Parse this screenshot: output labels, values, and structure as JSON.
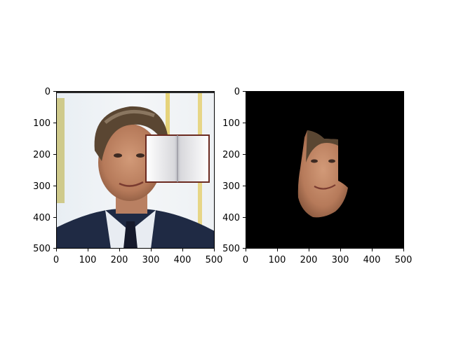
{
  "figure": {
    "background": "#ffffff",
    "panels": [
      {
        "name": "original-image",
        "description_free": true,
        "x_ticks": [
          "0",
          "100",
          "200",
          "300",
          "400",
          "500"
        ],
        "y_ticks": [
          "0",
          "100",
          "200",
          "300",
          "400",
          "500"
        ]
      },
      {
        "name": "masked-face-image",
        "x_ticks": [
          "0",
          "100",
          "200",
          "300",
          "400",
          "500"
        ],
        "y_ticks": [
          "0",
          "100",
          "200",
          "300",
          "400",
          "500"
        ]
      }
    ]
  }
}
